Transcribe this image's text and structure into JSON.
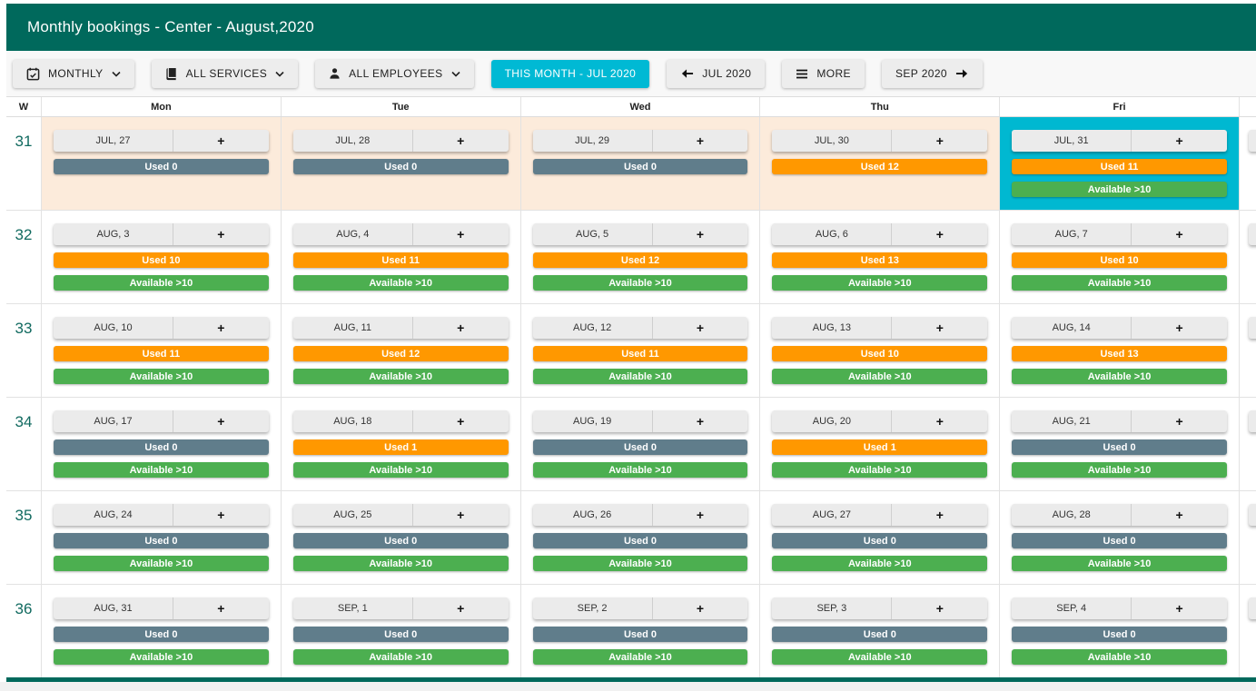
{
  "title_bar": {
    "title": "Monthly bookings - Center - August,2020"
  },
  "toolbar": {
    "buttons": [
      {
        "id": "view-mode",
        "label": "MONTHLY",
        "icon": "calendar-icon",
        "chevron": true
      },
      {
        "id": "all-services",
        "label": "ALL SERVICES",
        "icon": "book-icon",
        "chevron": true
      },
      {
        "id": "all-employees",
        "label": "ALL EMPLOYEES",
        "icon": "person-icon",
        "chevron": true
      },
      {
        "id": "this-month",
        "label": "THIS MONTH - JUL 2020",
        "primary": true
      },
      {
        "id": "prev-month",
        "label": "JUL 2020",
        "icon": "arrow-left-icon"
      },
      {
        "id": "more",
        "label": "MORE",
        "icon": "menu-icon"
      },
      {
        "id": "next-month",
        "label": "SEP 2020",
        "icon_after": "arrow-right-icon"
      }
    ]
  },
  "calendar": {
    "week_col_header": "W",
    "day_headers": [
      "Mon",
      "Tue",
      "Wed",
      "Thu",
      "Fri"
    ],
    "plus_label": "+",
    "weeks": [
      {
        "num": "31",
        "days": [
          {
            "date": "JUL, 27",
            "used_label": "Used 0",
            "used_level": "zero",
            "available_label": null,
            "other_month": true
          },
          {
            "date": "JUL, 28",
            "used_label": "Used 0",
            "used_level": "zero",
            "available_label": null,
            "other_month": true
          },
          {
            "date": "JUL, 29",
            "used_label": "Used 0",
            "used_level": "zero",
            "available_label": null,
            "other_month": true
          },
          {
            "date": "JUL, 30",
            "used_label": "Used 12",
            "used_level": "busy",
            "available_label": null,
            "other_month": true
          },
          {
            "date": "JUL, 31",
            "used_label": "Used 11",
            "used_level": "busy",
            "available_label": "Available >10",
            "other_month": true,
            "selected": true
          }
        ]
      },
      {
        "num": "32",
        "days": [
          {
            "date": "AUG, 3",
            "used_label": "Used 10",
            "used_level": "busy",
            "available_label": "Available >10"
          },
          {
            "date": "AUG, 4",
            "used_label": "Used 11",
            "used_level": "busy",
            "available_label": "Available >10"
          },
          {
            "date": "AUG, 5",
            "used_label": "Used 12",
            "used_level": "busy",
            "available_label": "Available >10"
          },
          {
            "date": "AUG, 6",
            "used_label": "Used 13",
            "used_level": "busy",
            "available_label": "Available >10"
          },
          {
            "date": "AUG, 7",
            "used_label": "Used 10",
            "used_level": "busy",
            "available_label": "Available >10"
          }
        ]
      },
      {
        "num": "33",
        "days": [
          {
            "date": "AUG, 10",
            "used_label": "Used 11",
            "used_level": "busy",
            "available_label": "Available >10"
          },
          {
            "date": "AUG, 11",
            "used_label": "Used 12",
            "used_level": "busy",
            "available_label": "Available >10"
          },
          {
            "date": "AUG, 12",
            "used_label": "Used 11",
            "used_level": "busy",
            "available_label": "Available >10"
          },
          {
            "date": "AUG, 13",
            "used_label": "Used 10",
            "used_level": "busy",
            "available_label": "Available >10"
          },
          {
            "date": "AUG, 14",
            "used_label": "Used 13",
            "used_level": "busy",
            "available_label": "Available >10"
          }
        ]
      },
      {
        "num": "34",
        "days": [
          {
            "date": "AUG, 17",
            "used_label": "Used 0",
            "used_level": "zero",
            "available_label": "Available >10"
          },
          {
            "date": "AUG, 18",
            "used_label": "Used 1",
            "used_level": "busy",
            "available_label": "Available >10"
          },
          {
            "date": "AUG, 19",
            "used_label": "Used 0",
            "used_level": "zero",
            "available_label": "Available >10"
          },
          {
            "date": "AUG, 20",
            "used_label": "Used 1",
            "used_level": "busy",
            "available_label": "Available >10"
          },
          {
            "date": "AUG, 21",
            "used_label": "Used 0",
            "used_level": "zero",
            "available_label": "Available >10"
          }
        ]
      },
      {
        "num": "35",
        "days": [
          {
            "date": "AUG, 24",
            "used_label": "Used 0",
            "used_level": "zero",
            "available_label": "Available >10"
          },
          {
            "date": "AUG, 25",
            "used_label": "Used 0",
            "used_level": "zero",
            "available_label": "Available >10"
          },
          {
            "date": "AUG, 26",
            "used_label": "Used 0",
            "used_level": "zero",
            "available_label": "Available >10"
          },
          {
            "date": "AUG, 27",
            "used_label": "Used 0",
            "used_level": "zero",
            "available_label": "Available >10"
          },
          {
            "date": "AUG, 28",
            "used_label": "Used 0",
            "used_level": "zero",
            "available_label": "Available >10"
          }
        ]
      },
      {
        "num": "36",
        "days": [
          {
            "date": "AUG, 31",
            "used_label": "Used 0",
            "used_level": "zero",
            "available_label": "Available >10"
          },
          {
            "date": "SEP, 1",
            "used_label": "Used 0",
            "used_level": "zero",
            "available_label": "Available >10"
          },
          {
            "date": "SEP, 2",
            "used_label": "Used 0",
            "used_level": "zero",
            "available_label": "Available >10"
          },
          {
            "date": "SEP, 3",
            "used_label": "Used 0",
            "used_level": "zero",
            "available_label": "Available >10"
          },
          {
            "date": "SEP, 4",
            "used_label": "Used 0",
            "used_level": "zero",
            "available_label": "Available >10"
          }
        ]
      }
    ],
    "partial_column": {
      "rows": 6,
      "bar_levels": [
        "zero",
        "red"
      ]
    }
  },
  "colors": {
    "header_teal": "#00695c",
    "accent_cyan": "#00b9d4",
    "selected_day_bg": "#00b8d1",
    "used_busy_orange": "#ff9800",
    "used_zero_slate": "#607d8b",
    "available_green": "#4caf50",
    "unavailable_red": "#f44336",
    "prev_month_bg": "#fcebdb"
  }
}
